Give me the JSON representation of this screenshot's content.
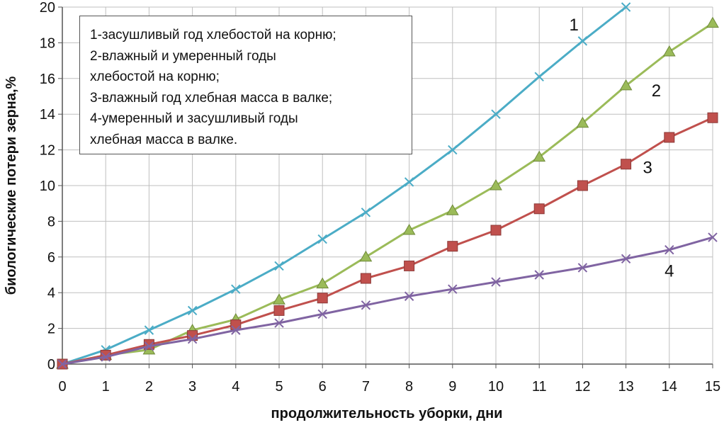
{
  "chart_data": {
    "type": "line",
    "xlabel": "продолжительность уборки, дни",
    "ylabel": "биологические потери зерна,%",
    "xlim": [
      0,
      15
    ],
    "ylim": [
      0,
      20
    ],
    "x_ticks": [
      "0",
      "1",
      "2",
      "3",
      "4",
      "5",
      "6",
      "7",
      "8",
      "9",
      "10",
      "11",
      "12",
      "13",
      "14",
      "15"
    ],
    "y_ticks": [
      "0",
      "2",
      "4",
      "6",
      "8",
      "10",
      "12",
      "14",
      "16",
      "18",
      "20"
    ],
    "grid": true,
    "legend_placement": "top-left",
    "legend_lines": [
      "1-засушливый год хлебостой на корню;",
      "2-влажный и умеренный годы",
      "хлебостой на корню;",
      "3-влажный год хлебная масса в валке;",
      "4-умеренный и засушливый годы",
      "хлебная масса в валке."
    ],
    "series": [
      {
        "name": "1",
        "color": "#4bacc6",
        "marker": "x",
        "x": [
          0,
          1,
          2,
          3,
          4,
          5,
          6,
          7,
          8,
          9,
          10,
          11,
          12,
          13
        ],
        "values": [
          0,
          0.8,
          1.9,
          3.0,
          4.2,
          5.5,
          7.0,
          8.5,
          10.2,
          12.0,
          14.0,
          16.1,
          18.1,
          20.0
        ]
      },
      {
        "name": "2",
        "color": "#9bbb59",
        "marker": "triangle",
        "x": [
          0,
          1,
          2,
          3,
          4,
          5,
          6,
          7,
          8,
          9,
          10,
          11,
          12,
          13,
          14,
          15
        ],
        "values": [
          0,
          0.5,
          0.8,
          1.9,
          2.5,
          3.6,
          4.5,
          6.0,
          7.5,
          8.6,
          10.0,
          11.6,
          13.5,
          15.6,
          17.5,
          19.1
        ]
      },
      {
        "name": "3",
        "color": "#c0504d",
        "marker": "square",
        "x": [
          0,
          1,
          2,
          3,
          4,
          5,
          6,
          7,
          8,
          9,
          10,
          11,
          12,
          13,
          14,
          15
        ],
        "values": [
          0,
          0.5,
          1.1,
          1.6,
          2.2,
          3.0,
          3.7,
          4.8,
          5.5,
          6.6,
          7.5,
          8.7,
          10.0,
          11.2,
          12.7,
          13.8
        ]
      },
      {
        "name": "4",
        "color": "#8064a2",
        "marker": "x",
        "x": [
          0,
          1,
          2,
          3,
          4,
          5,
          6,
          7,
          8,
          9,
          10,
          11,
          12,
          13,
          14,
          15
        ],
        "values": [
          0,
          0.4,
          1.0,
          1.4,
          1.9,
          2.3,
          2.8,
          3.3,
          3.8,
          4.2,
          4.6,
          5.0,
          5.4,
          5.9,
          6.4,
          7.1
        ]
      }
    ],
    "series_labels": [
      {
        "text": "1",
        "x": 11.8,
        "y": 18.7
      },
      {
        "text": "2",
        "x": 13.7,
        "y": 15.0
      },
      {
        "text": "3",
        "x": 13.5,
        "y": 10.7
      },
      {
        "text": "4",
        "x": 14.0,
        "y": 4.9
      }
    ]
  }
}
